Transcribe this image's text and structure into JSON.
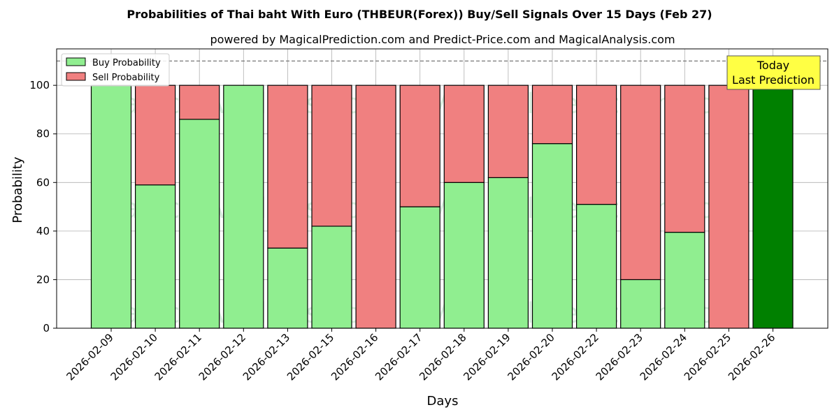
{
  "chart_data": {
    "type": "bar",
    "stacked": true,
    "title": "Probabilities of Thai baht With Euro (THBEUR(Forex)) Buy/Sell Signals Over 15 Days (Feb 27)",
    "subtitle": "powered by MagicalPrediction.com and Predict-Price.com and MagicalAnalysis.com",
    "xlabel": "Days",
    "ylabel": "Probability",
    "ylim": [
      0,
      115
    ],
    "yticks": [
      0,
      20,
      40,
      60,
      80,
      100
    ],
    "grid": true,
    "legend_position": "top-left",
    "reference_line": 110,
    "categories": [
      "2026-02-09",
      "2026-02-10",
      "2026-02-11",
      "2026-02-12",
      "2026-02-13",
      "2026-02-15",
      "2026-02-16",
      "2026-02-17",
      "2026-02-18",
      "2026-02-19",
      "2026-02-20",
      "2026-02-22",
      "2026-02-23",
      "2026-02-24",
      "2026-02-25",
      "2026-02-26"
    ],
    "series": [
      {
        "name": "Buy Probability",
        "color": "#90ee90",
        "values": [
          100,
          59,
          86,
          100,
          33,
          42,
          0,
          50,
          60,
          62,
          76,
          51,
          20,
          39.5,
          0,
          100
        ]
      },
      {
        "name": "Sell Probability",
        "color": "#f08080",
        "values": [
          0,
          41,
          14,
          0,
          67,
          58,
          100,
          50,
          40,
          38,
          24,
          49,
          80,
          60.5,
          100,
          0
        ]
      }
    ],
    "highlight": {
      "index": 15,
      "color": "#008000"
    },
    "annotation": {
      "lines": [
        "Today",
        "Last Prediction"
      ],
      "background": "#ffff44"
    },
    "watermarks": [
      "MagicalAnalysis.com",
      "MagicalPrediction.com"
    ]
  }
}
